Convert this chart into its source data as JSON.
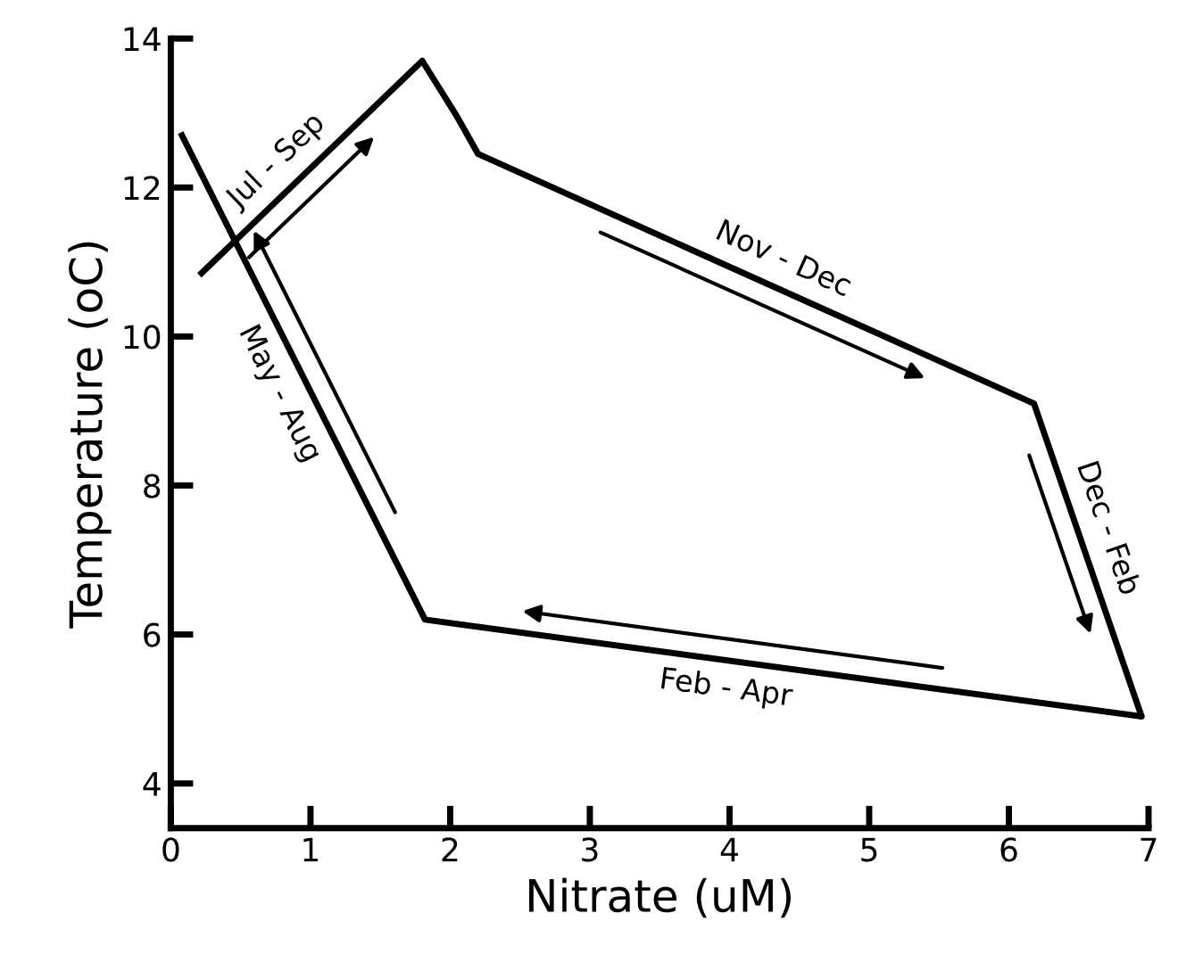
{
  "chart_data": {
    "type": "line",
    "xlabel": "Nitrate (uM)",
    "ylabel": "Temperature (oC)",
    "x": [
      0.22,
      1.8,
      2.05,
      2.2,
      6.18,
      6.95,
      1.82,
      0.08
    ],
    "series": [
      {
        "color": "#000000",
        "values": [
          10.85,
          13.7,
          12.95,
          12.45,
          9.1,
          4.9,
          6.2,
          12.7
        ]
      }
    ],
    "xlim": [
      0,
      7
    ],
    "ylim": [
      3.4,
      14
    ],
    "xticks": [
      0,
      1,
      2,
      3,
      4,
      5,
      6,
      7
    ],
    "yticks": [
      4,
      6,
      8,
      10,
      12,
      14
    ],
    "grid": false,
    "legend": false,
    "marker": "none",
    "line_style": "solid",
    "annotations": [
      {
        "text": "Jul - Sep",
        "x": 0.9,
        "y": 12.08
      },
      {
        "text": "Nov - Dec",
        "x": 4.3,
        "y": 10.68
      },
      {
        "text": "Dec - Feb",
        "x": 6.51,
        "y": 7.3
      },
      {
        "text": "Feb - Apr",
        "x": 4.0,
        "y": 5.65
      },
      {
        "text": "May - Aug",
        "x": 0.96,
        "y": 9.4
      }
    ]
  }
}
